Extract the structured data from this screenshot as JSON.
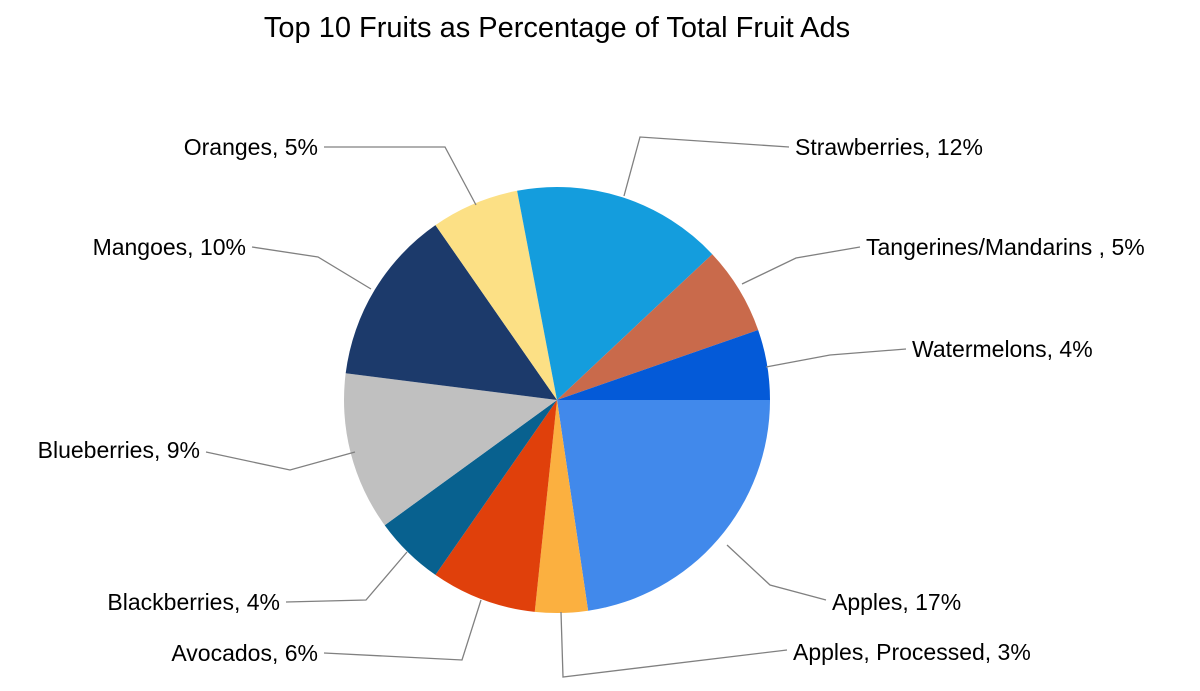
{
  "chart_data": {
    "type": "pie",
    "title": "Top 10 Fruits as Percentage of Total Fruit Ads",
    "slices": [
      {
        "label": "Apples",
        "value": 17,
        "label_text": "Apples, 17%",
        "color": "#4189eb"
      },
      {
        "label": "Apples, Processed",
        "value": 3,
        "label_text": "Apples, Processed, 3%",
        "color": "#fbb040"
      },
      {
        "label": "Avocados",
        "value": 6,
        "label_text": "Avocados, 6%",
        "color": "#e0400b"
      },
      {
        "label": "Blackberries",
        "value": 4,
        "label_text": "Blackberries, 4%",
        "color": "#08618f"
      },
      {
        "label": "Blueberries",
        "value": 9,
        "label_text": "Blueberries, 9%",
        "color": "#c0c0c0"
      },
      {
        "label": "Mangoes",
        "value": 10,
        "label_text": "Mangoes, 10%",
        "color": "#1c3a6b"
      },
      {
        "label": "Oranges",
        "value": 5,
        "label_text": "Oranges, 5%",
        "color": "#fce085"
      },
      {
        "label": "Strawberries",
        "value": 12,
        "label_text": "Strawberries, 12%",
        "color": "#149ddd"
      },
      {
        "label": "Tangerines/Mandarins ",
        "value": 5,
        "label_text": "Tangerines/Mandarins , 5%",
        "color": "#c96a4b"
      },
      {
        "label": "Watermelons",
        "value": 4,
        "label_text": "Watermelons, 4%",
        "color": "#045ad8"
      }
    ],
    "legend": "none"
  }
}
